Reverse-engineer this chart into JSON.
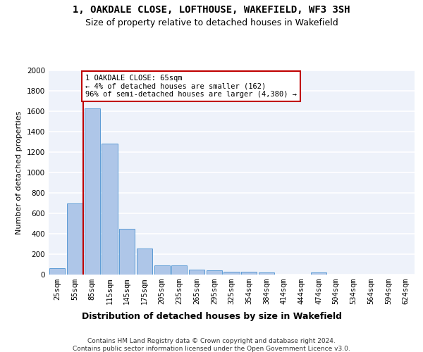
{
  "title": "1, OAKDALE CLOSE, LOFTHOUSE, WAKEFIELD, WF3 3SH",
  "subtitle": "Size of property relative to detached houses in Wakefield",
  "xlabel": "Distribution of detached houses by size in Wakefield",
  "ylabel": "Number of detached properties",
  "bar_labels": [
    "25sqm",
    "55sqm",
    "85sqm",
    "115sqm",
    "145sqm",
    "175sqm",
    "205sqm",
    "235sqm",
    "265sqm",
    "295sqm",
    "325sqm",
    "354sqm",
    "384sqm",
    "414sqm",
    "444sqm",
    "474sqm",
    "504sqm",
    "534sqm",
    "564sqm",
    "594sqm",
    "624sqm"
  ],
  "bar_values": [
    65,
    695,
    1630,
    1285,
    445,
    255,
    88,
    88,
    50,
    42,
    30,
    30,
    18,
    0,
    0,
    18,
    0,
    0,
    0,
    0,
    0
  ],
  "bar_color": "#aec6e8",
  "bar_edge_color": "#5b9bd5",
  "vline_x": 1.5,
  "vline_color": "#c00000",
  "annotation_text": "1 OAKDALE CLOSE: 65sqm\n← 4% of detached houses are smaller (162)\n96% of semi-detached houses are larger (4,380) →",
  "annotation_box_color": "#ffffff",
  "annotation_box_edge": "#c00000",
  "ylim": [
    0,
    2000
  ],
  "yticks": [
    0,
    200,
    400,
    600,
    800,
    1000,
    1200,
    1400,
    1600,
    1800,
    2000
  ],
  "footer_line1": "Contains HM Land Registry data © Crown copyright and database right 2024.",
  "footer_line2": "Contains public sector information licensed under the Open Government Licence v3.0.",
  "background_color": "#eef2fa",
  "grid_color": "#ffffff",
  "title_fontsize": 10,
  "subtitle_fontsize": 9,
  "axis_label_fontsize": 8,
  "tick_fontsize": 7.5,
  "footer_fontsize": 6.5,
  "annotation_fontsize": 7.5
}
